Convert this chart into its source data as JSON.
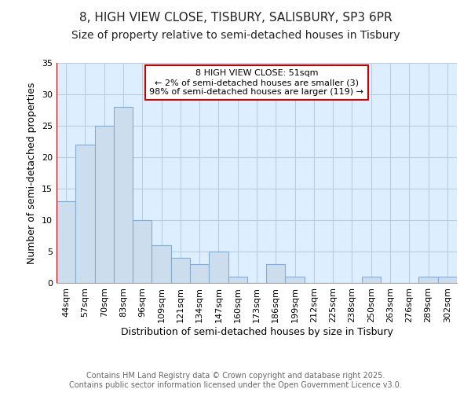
{
  "title_line1": "8, HIGH VIEW CLOSE, TISBURY, SALISBURY, SP3 6PR",
  "title_line2": "Size of property relative to semi-detached houses in Tisbury",
  "xlabel": "Distribution of semi-detached houses by size in Tisbury",
  "ylabel": "Number of semi-detached properties",
  "categories": [
    "44sqm",
    "57sqm",
    "70sqm",
    "83sqm",
    "96sqm",
    "109sqm",
    "121sqm",
    "134sqm",
    "147sqm",
    "160sqm",
    "173sqm",
    "186sqm",
    "199sqm",
    "212sqm",
    "225sqm",
    "238sqm",
    "250sqm",
    "263sqm",
    "276sqm",
    "289sqm",
    "302sqm"
  ],
  "values": [
    13,
    22,
    25,
    28,
    10,
    6,
    4,
    3,
    5,
    1,
    0,
    3,
    1,
    0,
    0,
    0,
    1,
    0,
    0,
    1,
    1
  ],
  "bar_color": "#ccdded",
  "bar_edge_color": "#88aacc",
  "highlight_line_color": "#cc0000",
  "annotation_text": "8 HIGH VIEW CLOSE: 51sqm\n← 2% of semi-detached houses are smaller (3)\n98% of semi-detached houses are larger (119) →",
  "annotation_box_color": "#ffffff",
  "annotation_box_edge": "#cc0000",
  "ylim": [
    0,
    35
  ],
  "yticks": [
    0,
    5,
    10,
    15,
    20,
    25,
    30,
    35
  ],
  "grid_color": "#bbccdd",
  "bg_color": "#ddeeff",
  "footer_text": "Contains HM Land Registry data © Crown copyright and database right 2025.\nContains public sector information licensed under the Open Government Licence v3.0.",
  "title_fontsize": 11,
  "subtitle_fontsize": 10,
  "axis_label_fontsize": 9,
  "tick_fontsize": 8,
  "footer_fontsize": 7,
  "annotation_fontsize": 8
}
